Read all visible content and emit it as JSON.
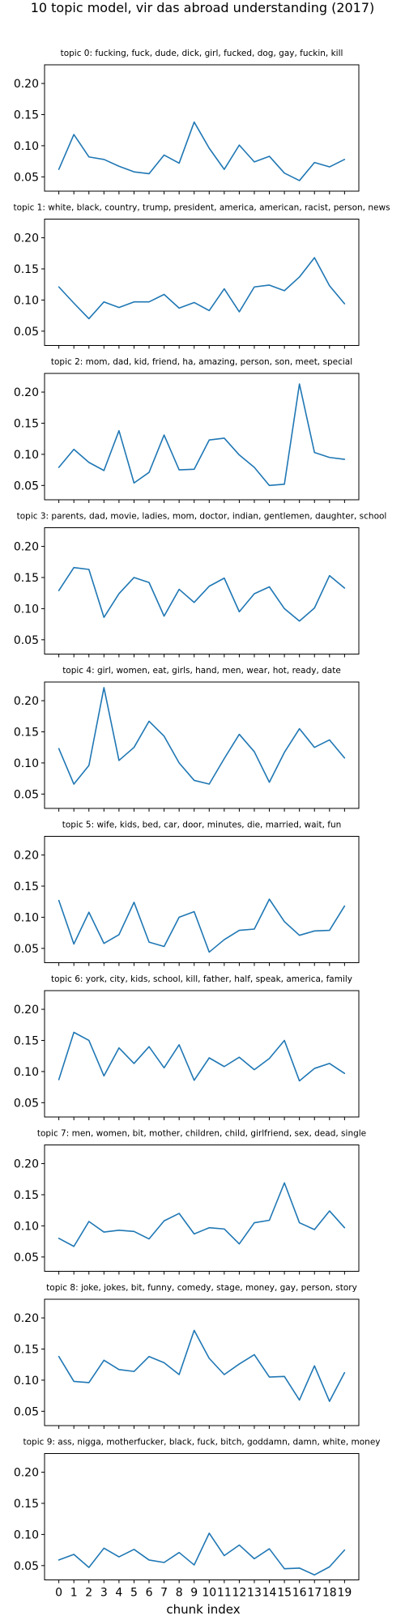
{
  "figure_title": "10 topic model, vir das abroad understanding (2017)",
  "chart_data": {
    "type": "line",
    "title": "10 topic model, vir das abroad understanding (2017)",
    "xlabel": "chunk index",
    "ylabel": "",
    "x": [
      0,
      1,
      2,
      3,
      4,
      5,
      6,
      7,
      8,
      9,
      10,
      11,
      12,
      13,
      14,
      15,
      16,
      17,
      18,
      19
    ],
    "xlim": [
      -0.95,
      19.95
    ],
    "ylim": [
      0.027,
      0.23
    ],
    "yticks": [
      "0.05",
      "0.10",
      "0.15",
      "0.20"
    ],
    "ytick_values": [
      0.05,
      0.1,
      0.15,
      0.2
    ],
    "line_color": "#1f77b4",
    "grid": false,
    "panels": [
      {
        "title": "topic 0: fucking, fuck, dude, dick, girl, fucked, dog, gay, fuckin, kill",
        "values": [
          0.062,
          0.118,
          0.082,
          0.078,
          0.067,
          0.058,
          0.055,
          0.085,
          0.072,
          0.138,
          0.096,
          0.062,
          0.101,
          0.074,
          0.083,
          0.056,
          0.044,
          0.073,
          0.066,
          0.078
        ]
      },
      {
        "title": "topic 1: white, black, country, trump, president, america, american, racist, person, news",
        "values": [
          0.121,
          0.095,
          0.07,
          0.097,
          0.088,
          0.097,
          0.097,
          0.109,
          0.087,
          0.096,
          0.083,
          0.118,
          0.081,
          0.121,
          0.124,
          0.115,
          0.137,
          0.168,
          0.123,
          0.094
        ]
      },
      {
        "title": "topic 2: mom, dad, kid, friend, ha, amazing, person, son, meet, special",
        "values": [
          0.079,
          0.108,
          0.087,
          0.074,
          0.138,
          0.054,
          0.071,
          0.131,
          0.075,
          0.076,
          0.123,
          0.126,
          0.099,
          0.079,
          0.05,
          0.052,
          0.213,
          0.103,
          0.095,
          0.092
        ]
      },
      {
        "title": "topic 3: parents, dad, movie, ladies, mom, doctor, indian, gentlemen, daughter, school",
        "values": [
          0.129,
          0.166,
          0.163,
          0.086,
          0.124,
          0.15,
          0.142,
          0.088,
          0.131,
          0.11,
          0.136,
          0.149,
          0.095,
          0.124,
          0.135,
          0.1,
          0.08,
          0.101,
          0.153,
          0.133
        ]
      },
      {
        "title": "topic 4: girl, women, eat, girls, hand, men, wear, hot, ready, date",
        "values": [
          0.123,
          0.066,
          0.096,
          0.221,
          0.104,
          0.125,
          0.167,
          0.143,
          0.1,
          0.072,
          0.066,
          0.107,
          0.146,
          0.118,
          0.069,
          0.117,
          0.155,
          0.125,
          0.137,
          0.108
        ]
      },
      {
        "title": "topic 5: wife, kids, bed, car, door, minutes, die, married, wait, fun",
        "values": [
          0.127,
          0.057,
          0.108,
          0.058,
          0.072,
          0.124,
          0.06,
          0.053,
          0.1,
          0.109,
          0.044,
          0.064,
          0.079,
          0.081,
          0.129,
          0.093,
          0.071,
          0.078,
          0.079,
          0.118
        ]
      },
      {
        "title": "topic 6: york, city, kids, school, kill, father, half, speak, america, family",
        "values": [
          0.087,
          0.163,
          0.15,
          0.093,
          0.138,
          0.113,
          0.14,
          0.106,
          0.143,
          0.086,
          0.122,
          0.108,
          0.123,
          0.103,
          0.121,
          0.15,
          0.085,
          0.105,
          0.113,
          0.097
        ]
      },
      {
        "title": "topic 7: men, women, bit, mother, children, child, girlfriend, sex, dead, single",
        "values": [
          0.08,
          0.067,
          0.107,
          0.09,
          0.093,
          0.091,
          0.079,
          0.108,
          0.12,
          0.087,
          0.097,
          0.095,
          0.071,
          0.105,
          0.109,
          0.169,
          0.105,
          0.094,
          0.124,
          0.097
        ]
      },
      {
        "title": "topic 8: joke, jokes, bit, funny, comedy, stage, money, gay, person, story",
        "values": [
          0.138,
          0.098,
          0.096,
          0.132,
          0.117,
          0.114,
          0.138,
          0.128,
          0.109,
          0.18,
          0.135,
          0.109,
          0.126,
          0.141,
          0.105,
          0.106,
          0.068,
          0.123,
          0.066,
          0.112
        ]
      },
      {
        "title": "topic 9: ass, nigga, motherfucker, black, fuck, bitch, goddamn, damn, white, money",
        "values": [
          0.059,
          0.068,
          0.047,
          0.078,
          0.064,
          0.076,
          0.059,
          0.055,
          0.071,
          0.051,
          0.102,
          0.066,
          0.083,
          0.061,
          0.077,
          0.045,
          0.046,
          0.035,
          0.048,
          0.075
        ]
      }
    ]
  }
}
